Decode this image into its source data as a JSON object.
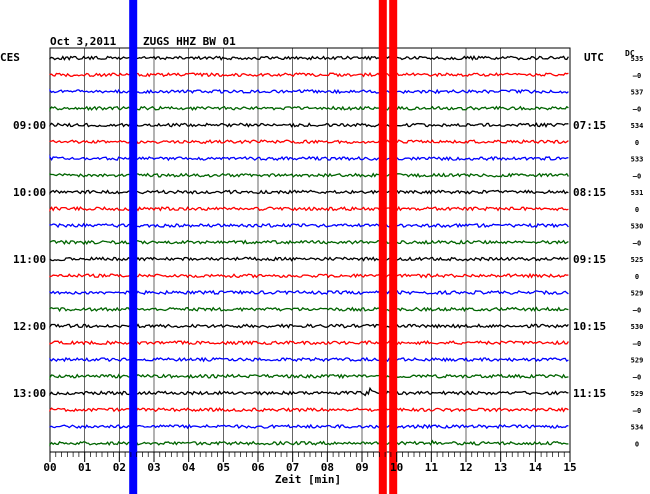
{
  "header": {
    "date": "Oct 3,2011",
    "station": "ZUGS HHZ BW 01",
    "left_tz": "CES",
    "right_tz": "UTC",
    "dc_label": "DC"
  },
  "chart_data": {
    "type": "line",
    "title": "Oct 3,2011 | ZUGS HHZ BW 01",
    "xlabel": "Zeit [min]",
    "xlim": [
      0,
      15
    ],
    "x_ticks": [
      "00",
      "01",
      "02",
      "03",
      "04",
      "05",
      "06",
      "07",
      "08",
      "09",
      "10",
      "11",
      "12",
      "13",
      "14",
      "15"
    ],
    "trace_count": 24,
    "trace_colors": [
      "#000000",
      "#ff0000",
      "#0000ff",
      "#006400"
    ],
    "left_time_labels": [
      {
        "trace": 4,
        "label": "09:00"
      },
      {
        "trace": 8,
        "label": "10:00"
      },
      {
        "trace": 12,
        "label": "11:00"
      },
      {
        "trace": 16,
        "label": "12:00"
      },
      {
        "trace": 20,
        "label": "13:00"
      }
    ],
    "right_time_labels": [
      {
        "trace": 4,
        "label": "07:15"
      },
      {
        "trace": 8,
        "label": "08:15"
      },
      {
        "trace": 12,
        "label": "09:15"
      },
      {
        "trace": 16,
        "label": "10:15"
      },
      {
        "trace": 20,
        "label": "11:15"
      }
    ],
    "dc_values": [
      "535",
      "–0",
      "537",
      "–0",
      "534",
      "0",
      "533",
      "–0",
      "531",
      "0",
      "530",
      "–0",
      "525",
      "0",
      "529",
      "–0",
      "530",
      "–0",
      "529",
      "–0",
      "529",
      "–0",
      "534",
      "0"
    ],
    "markers": [
      {
        "color": "#0000ff",
        "x_min": 2.4
      },
      {
        "color": "#ff0000",
        "x_min": 9.6
      },
      {
        "color": "#ff0000",
        "x_min": 9.9
      }
    ],
    "events": [
      {
        "trace": 20,
        "x_min": 9.2
      },
      {
        "trace": 23,
        "x_min": 11.05
      }
    ],
    "grid": true
  }
}
